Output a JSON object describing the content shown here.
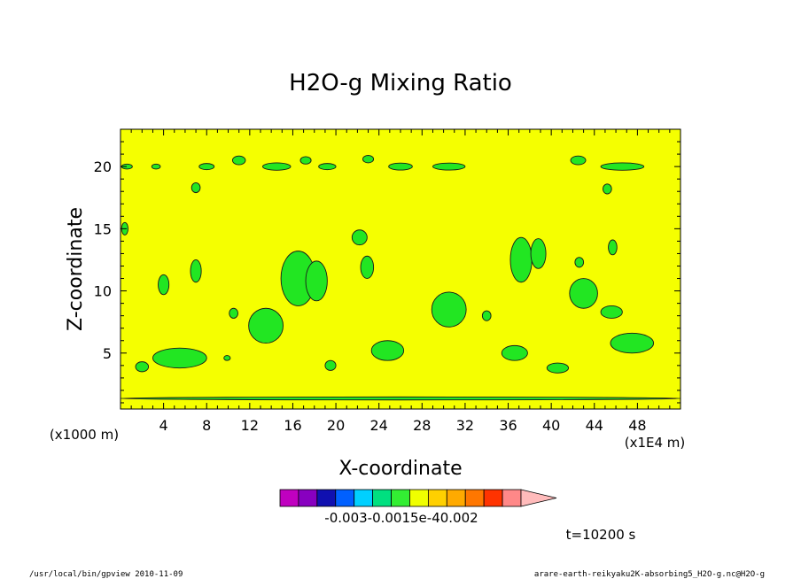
{
  "chart_data": {
    "type": "heatmap",
    "title": "H2O-g Mixing Ratio",
    "xlabel": "X-coordinate",
    "ylabel": "Z-coordinate",
    "x_unit": "(x1E4 m)",
    "y_unit": "(x1000 m)",
    "xlim": [
      0,
      52
    ],
    "ylim": [
      0.5,
      23
    ],
    "x_ticks": [
      4,
      8,
      12,
      16,
      20,
      24,
      28,
      32,
      36,
      40,
      44,
      48
    ],
    "y_ticks": [
      5,
      10,
      15,
      20
    ],
    "background_level_color": "#f5ff00",
    "contour_fill_color": "#22e622",
    "colorbar": {
      "colors": [
        "#c000c0",
        "#8800c0",
        "#1010b0",
        "#0060ff",
        "#00d0ff",
        "#00e080",
        "#33ee33",
        "#f0ff00",
        "#ffd000",
        "#ffaa00",
        "#ff7700",
        "#ff3300",
        "#ff8888",
        "#ffbbbb"
      ],
      "labels": [
        "-0.003",
        "-0.001",
        "5e-4",
        "0.002"
      ],
      "label_text": "-0.003-0.0015e-40.002"
    },
    "time_label": "t=10200 s",
    "regions": [
      {
        "name": "low-band",
        "cx": 26,
        "cy": 1.35,
        "rx": 26,
        "ry": 0.12
      },
      {
        "name": "blob",
        "cx": 5.5,
        "cy": 4.6,
        "rx": 2.5,
        "ry": 0.8
      },
      {
        "name": "blob",
        "cx": 2.0,
        "cy": 3.9,
        "rx": 0.6,
        "ry": 0.4
      },
      {
        "name": "blob",
        "cx": 13.5,
        "cy": 7.2,
        "rx": 1.6,
        "ry": 1.4
      },
      {
        "name": "blob",
        "cx": 16.5,
        "cy": 11.0,
        "rx": 1.6,
        "ry": 2.2
      },
      {
        "name": "blob",
        "cx": 18.2,
        "cy": 10.8,
        "rx": 1.0,
        "ry": 1.6
      },
      {
        "name": "blob",
        "cx": 24.8,
        "cy": 5.2,
        "rx": 1.5,
        "ry": 0.8
      },
      {
        "name": "blob",
        "cx": 30.5,
        "cy": 8.5,
        "rx": 1.6,
        "ry": 1.4
      },
      {
        "name": "blob",
        "cx": 37.2,
        "cy": 12.5,
        "rx": 1.0,
        "ry": 1.8
      },
      {
        "name": "blob",
        "cx": 38.8,
        "cy": 13.0,
        "rx": 0.7,
        "ry": 1.2
      },
      {
        "name": "blob",
        "cx": 43.0,
        "cy": 9.8,
        "rx": 1.3,
        "ry": 1.2
      },
      {
        "name": "blob",
        "cx": 47.5,
        "cy": 5.8,
        "rx": 2.0,
        "ry": 0.8
      },
      {
        "name": "blob",
        "cx": 36.6,
        "cy": 5.0,
        "rx": 1.2,
        "ry": 0.6
      },
      {
        "name": "blob",
        "cx": 40.6,
        "cy": 3.8,
        "rx": 1.0,
        "ry": 0.4
      },
      {
        "name": "blob",
        "cx": 45.6,
        "cy": 8.3,
        "rx": 1.0,
        "ry": 0.5
      },
      {
        "name": "blob",
        "cx": 19.5,
        "cy": 4.0,
        "rx": 0.5,
        "ry": 0.4
      },
      {
        "name": "blob",
        "cx": 22.2,
        "cy": 14.3,
        "rx": 0.7,
        "ry": 0.6
      },
      {
        "name": "blob",
        "cx": 22.9,
        "cy": 11.9,
        "rx": 0.6,
        "ry": 0.9
      },
      {
        "name": "blob",
        "cx": 10.5,
        "cy": 8.2,
        "rx": 0.4,
        "ry": 0.4
      },
      {
        "name": "blob",
        "cx": 7.0,
        "cy": 11.6,
        "rx": 0.5,
        "ry": 0.9
      },
      {
        "name": "blob",
        "cx": 4.0,
        "cy": 10.5,
        "rx": 0.5,
        "ry": 0.8
      },
      {
        "name": "blob",
        "cx": 34.0,
        "cy": 8.0,
        "rx": 0.4,
        "ry": 0.4
      },
      {
        "name": "blob",
        "cx": 45.7,
        "cy": 13.5,
        "rx": 0.4,
        "ry": 0.6
      },
      {
        "name": "blob",
        "cx": 42.6,
        "cy": 12.3,
        "rx": 0.4,
        "ry": 0.4
      },
      {
        "name": "blob",
        "cx": 9.9,
        "cy": 4.6,
        "rx": 0.3,
        "ry": 0.2
      },
      {
        "name": "top-band",
        "cx": 14.5,
        "cy": 20.0,
        "rx": 1.3,
        "ry": 0.3
      },
      {
        "name": "top-band",
        "cx": 19.2,
        "cy": 20.0,
        "rx": 0.8,
        "ry": 0.25
      },
      {
        "name": "top-band",
        "cx": 26.0,
        "cy": 20.0,
        "rx": 1.1,
        "ry": 0.28
      },
      {
        "name": "top-band",
        "cx": 30.5,
        "cy": 20.0,
        "rx": 1.5,
        "ry": 0.28
      },
      {
        "name": "top-band",
        "cx": 46.6,
        "cy": 20.0,
        "rx": 2.0,
        "ry": 0.3
      },
      {
        "name": "top-band",
        "cx": 8.0,
        "cy": 20.0,
        "rx": 0.7,
        "ry": 0.25
      },
      {
        "name": "top-band",
        "cx": 11.0,
        "cy": 20.5,
        "rx": 0.6,
        "ry": 0.35
      },
      {
        "name": "top-band",
        "cx": 42.5,
        "cy": 20.5,
        "rx": 0.7,
        "ry": 0.35
      },
      {
        "name": "top-band",
        "cx": 3.3,
        "cy": 20.0,
        "rx": 0.4,
        "ry": 0.2
      },
      {
        "name": "top-band",
        "cx": 0.6,
        "cy": 20.0,
        "rx": 0.5,
        "ry": 0.2
      },
      {
        "name": "top-band",
        "cx": 17.2,
        "cy": 20.5,
        "rx": 0.5,
        "ry": 0.3
      },
      {
        "name": "top-band",
        "cx": 23.0,
        "cy": 20.6,
        "rx": 0.5,
        "ry": 0.3
      },
      {
        "name": "blob",
        "cx": 7.0,
        "cy": 18.3,
        "rx": 0.4,
        "ry": 0.4
      },
      {
        "name": "blob",
        "cx": 45.2,
        "cy": 18.2,
        "rx": 0.4,
        "ry": 0.4
      },
      {
        "name": "blob",
        "cx": 0.4,
        "cy": 15.0,
        "rx": 0.3,
        "ry": 0.5
      }
    ]
  },
  "footer": {
    "left": "/usr/local/bin/gpview  2010-11-09",
    "right": "arare-earth-reikyaku2K-absorbing5_H2O-g.nc@H2O-g"
  }
}
